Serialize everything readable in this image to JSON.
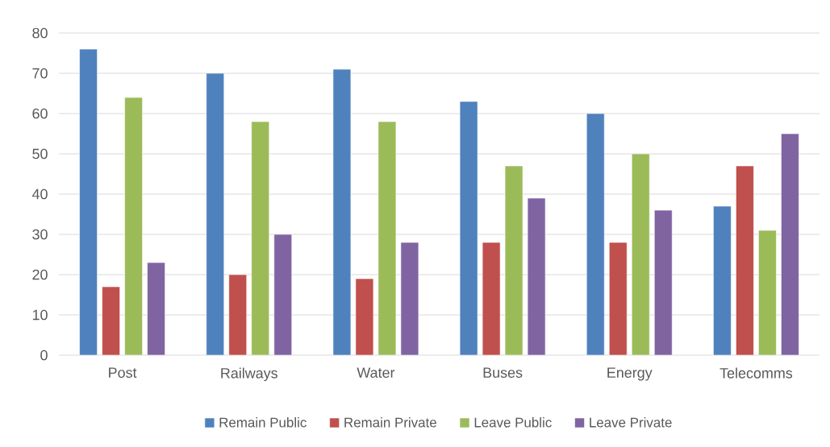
{
  "chart_data": {
    "type": "bar",
    "categories": [
      "Post",
      "Railways",
      "Water",
      "Buses",
      "Energy",
      "Telecomms"
    ],
    "series": [
      {
        "name": "Remain Public",
        "color": "#4f81bd",
        "values": [
          76,
          70,
          71,
          63,
          60,
          37
        ]
      },
      {
        "name": "Remain Private",
        "color": "#c0504d",
        "values": [
          17,
          20,
          19,
          28,
          28,
          47
        ]
      },
      {
        "name": "Leave Public",
        "color": "#9bbb59",
        "values": [
          64,
          58,
          58,
          47,
          50,
          31
        ]
      },
      {
        "name": "Leave Private",
        "color": "#8064a2",
        "values": [
          23,
          30,
          28,
          39,
          36,
          55
        ]
      }
    ],
    "ylim": [
      0,
      80
    ],
    "yticks": [
      0,
      10,
      20,
      30,
      40,
      50,
      60,
      70,
      80
    ],
    "grid": "y",
    "legend": "bottom"
  }
}
